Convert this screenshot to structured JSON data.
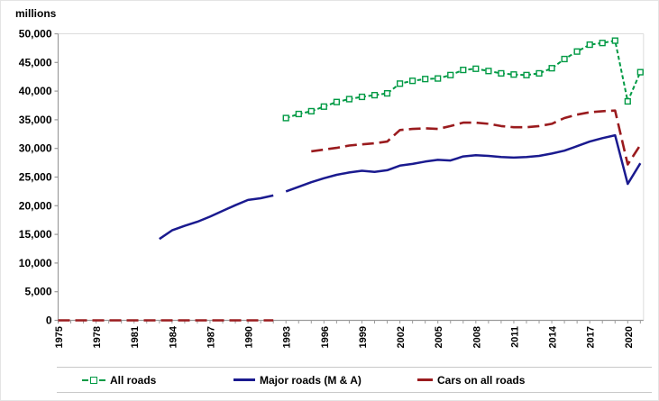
{
  "chart_data": {
    "type": "line",
    "title": "",
    "y_axis_title": "millions",
    "ylim": [
      0,
      50000
    ],
    "x_range": [
      1975,
      2021
    ],
    "grid": false,
    "legend_position": "bottom",
    "y_ticks": [
      0,
      5000,
      10000,
      15000,
      20000,
      25000,
      30000,
      35000,
      40000,
      45000,
      50000
    ],
    "y_tick_labels": [
      "0",
      "5,000",
      "10,000",
      "15,000",
      "20,000",
      "25,000",
      "30,000",
      "35,000",
      "40,000",
      "45,000",
      "50,000"
    ],
    "x_tick_years": [
      1975,
      1976,
      1977,
      1978,
      1979,
      1980,
      1981,
      1982,
      1983,
      1984,
      1985,
      1986,
      1987,
      1988,
      1989,
      1990,
      1991,
      1992,
      1993,
      1994,
      1995,
      1996,
      1997,
      1998,
      1999,
      2000,
      2001,
      2002,
      2003,
      2004,
      2005,
      2006,
      2007,
      2008,
      2009,
      2010,
      2011,
      2012,
      2013,
      2014,
      2015,
      2016,
      2017,
      2018,
      2019,
      2020,
      2021
    ],
    "x_label_years": [
      1975,
      1978,
      1981,
      1984,
      1987,
      1990,
      1993,
      1996,
      1999,
      2002,
      2005,
      2008,
      2011,
      2014,
      2017,
      2020
    ],
    "series": [
      {
        "name": "All roads",
        "color": "#009a44",
        "style": "dash_with_square_markers",
        "segments": [
          {
            "years": [
              1993,
              1994,
              1995,
              1996,
              1997,
              1998,
              1999,
              2000,
              2001,
              2002,
              2003,
              2004,
              2005,
              2006,
              2007,
              2008,
              2009,
              2010,
              2011,
              2012,
              2013,
              2014,
              2015,
              2016,
              2017,
              2018,
              2019,
              2020,
              2021
            ],
            "values": [
              35300,
              36000,
              36500,
              37300,
              38100,
              38600,
              39000,
              39300,
              39600,
              41300,
              41800,
              42100,
              42200,
              42800,
              43700,
              43900,
              43500,
              43100,
              42900,
              42800,
              43100,
              44000,
              45600,
              46900,
              48100,
              48400,
              48800,
              38200,
              43300
            ]
          }
        ]
      },
      {
        "name": "Major roads (M & A)",
        "color": "#1a1a8f",
        "style": "solid",
        "segments": [
          {
            "years": [
              1983,
              1984,
              1985,
              1986,
              1987,
              1988,
              1989,
              1990,
              1991,
              1992
            ],
            "values": [
              14200,
              15700,
              16500,
              17200,
              18100,
              19100,
              20100,
              21000,
              21300,
              21800
            ]
          },
          {
            "years": [
              1993,
              1994,
              1995,
              1996,
              1997,
              1998,
              1999,
              2000,
              2001,
              2002,
              2003,
              2004,
              2005,
              2006,
              2007,
              2008,
              2009,
              2010,
              2011,
              2012,
              2013,
              2014,
              2015,
              2016,
              2017,
              2018,
              2019,
              2020,
              2021
            ],
            "values": [
              22500,
              23300,
              24100,
              24800,
              25400,
              25800,
              26100,
              25900,
              26200,
              27000,
              27300,
              27700,
              28000,
              27900,
              28600,
              28800,
              28700,
              28500,
              28400,
              28500,
              28700,
              29100,
              29600,
              30400,
              31200,
              31800,
              32300,
              23800,
              27400
            ]
          }
        ]
      },
      {
        "name": "Cars on all roads",
        "color": "#9a1b1e",
        "style": "long_dash",
        "segments": [
          {
            "years": [
              1975,
              1976,
              1977,
              1978,
              1979,
              1980,
              1981,
              1982,
              1983,
              1984,
              1985,
              1986,
              1987,
              1988,
              1989,
              1990,
              1991,
              1992
            ],
            "values": [
              0,
              0,
              0,
              0,
              0,
              0,
              0,
              0,
              0,
              0,
              0,
              0,
              0,
              0,
              0,
              0,
              0,
              0
            ]
          },
          {
            "years": [
              1995,
              1996,
              1997,
              1998,
              1999,
              2000,
              2001,
              2002,
              2003,
              2004,
              2005,
              2006,
              2007,
              2008,
              2009,
              2010,
              2011,
              2012,
              2013,
              2014,
              2015,
              2016,
              2017,
              2018,
              2019,
              2020,
              2021
            ],
            "values": [
              29500,
              29800,
              30100,
              30500,
              30700,
              30900,
              31200,
              33200,
              33400,
              33500,
              33400,
              33900,
              34500,
              34500,
              34300,
              33900,
              33700,
              33700,
              33900,
              34300,
              35300,
              35900,
              36300,
              36500,
              36600,
              27200,
              30600
            ]
          }
        ]
      }
    ],
    "axis_colors": {
      "axis": "#9c9c9c",
      "frame": "#dcdcdc",
      "tick_text": "#000000"
    }
  }
}
